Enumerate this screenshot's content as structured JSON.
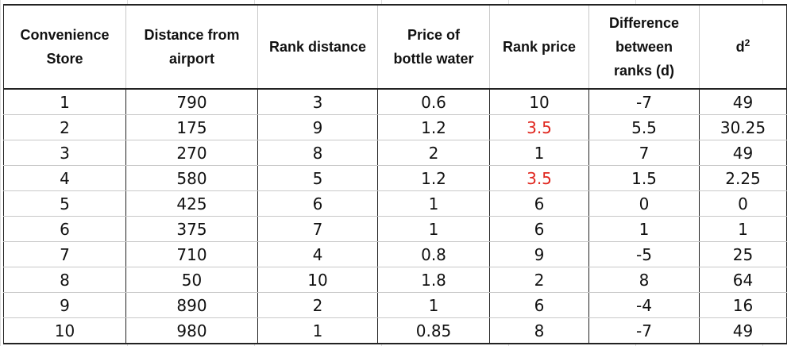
{
  "table": {
    "headers": [
      [
        "Convenience",
        "Store"
      ],
      [
        "Distance from",
        "airport"
      ],
      [
        "Rank distance"
      ],
      [
        "Price of",
        "bottle water"
      ],
      [
        "Rank price"
      ],
      [
        "Difference",
        "between",
        "ranks (d)"
      ],
      [
        "d",
        "2"
      ]
    ],
    "rows": [
      [
        "1",
        "790",
        "3",
        "0.6",
        "10",
        "-7",
        "49"
      ],
      [
        "2",
        "175",
        "9",
        "1.2",
        "3.5",
        "5.5",
        "30.25"
      ],
      [
        "3",
        "270",
        "8",
        "2",
        "1",
        "7",
        "49"
      ],
      [
        "4",
        "580",
        "5",
        "1.2",
        "3.5",
        "1.5",
        "2.25"
      ],
      [
        "5",
        "425",
        "6",
        "1",
        "6",
        "0",
        "0"
      ],
      [
        "6",
        "375",
        "7",
        "1",
        "6",
        "1",
        "1"
      ],
      [
        "7",
        "710",
        "4",
        "0.8",
        "9",
        "-5",
        "25"
      ],
      [
        "8",
        "50",
        "10",
        "1.8",
        "2",
        "8",
        "64"
      ],
      [
        "9",
        "890",
        "2",
        "1",
        "6",
        "-4",
        "16"
      ],
      [
        "10",
        "980",
        "1",
        "0.85",
        "8",
        "-7",
        "49"
      ]
    ],
    "highlight_color": "#e0271f",
    "highlighted_cells": [
      [
        1,
        4
      ],
      [
        3,
        4
      ]
    ]
  }
}
